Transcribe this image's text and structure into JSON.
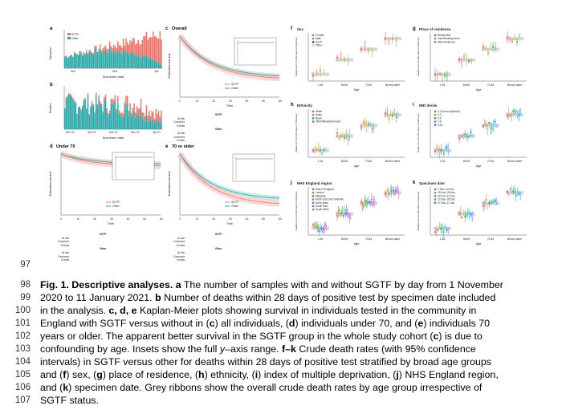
{
  "line_numbers": [
    "97",
    "98",
    "99",
    "100",
    "101",
    "102",
    "103",
    "104",
    "105",
    "106",
    "107"
  ],
  "caption_lines": [
    {
      "bold": "Fig. 1. Descriptive analyses. a",
      "text": " The number of samples with and without SGTF by day from 1 November"
    },
    {
      "bold": "",
      "text": "2020 to 11 January 2021. "
    },
    {
      "bold": "",
      "text": "in the analysis. "
    },
    {
      "bold": "",
      "text": "England with SGTF versus without in ("
    },
    {
      "bold": "",
      "text": "years or older. The apparent better survival in the SGTF group in the whole study cohort ("
    },
    {
      "bold": "",
      "text": "confounding by age. Insets show the full "
    },
    {
      "bold": "",
      "text": "intervals) in SGTF versus other for deaths within 28 days of positive test stratified by broad age groups"
    },
    {
      "bold": "",
      "text": "and ("
    },
    {
      "bold": "",
      "text": "and ("
    },
    {
      "bold": "",
      "text": "SGTF status."
    }
  ],
  "caption_rich": {
    "l99b": "b",
    "l99t": " Number of deaths within 28 days of positive test by specimen date included",
    "l100b": "c, d, e",
    "l100t": " Kaplan-Meier plots showing survival in individuals tested in the community in",
    "l101a": "c",
    "l101b": ") all individuals, (",
    "l101c": "d",
    "l101d": ") individuals under 70, and (",
    "l101e": "e",
    "l101f": ") individuals 70",
    "l102a": "c",
    "l102b": ") is due to",
    "l103a": "y",
    "l103b": "–axis range. ",
    "l103c": "f–k",
    "l103d": " Crude death rates (with 95% confidence",
    "l105a": "f",
    "l105b": ") sex, (",
    "l105c": "g",
    "l105d": ") place of residence, (",
    "l105e": "h",
    "l105f": ") ethnicity, (",
    "l105g": "i",
    "l105h": ") index of multiple deprivation, (",
    "l105i": "j",
    "l105j": ") NHS England region,",
    "l106a": "k",
    "l106b": ") specimen date. Grey ribbons show the overall crude death rates by age group irrespective of"
  },
  "panel_labels": {
    "a": "a",
    "b": "b",
    "c": "c",
    "d": "d",
    "e": "e",
    "f": "f",
    "g": "g",
    "h": "h",
    "i": "i",
    "j": "j",
    "k": "k"
  },
  "panel_a": {
    "ylabel": "Samples",
    "xlabel": "Specimen date",
    "legend": [
      "SGTF",
      "Other"
    ],
    "xticks": [
      "Nov",
      "Dec",
      "Jan"
    ],
    "colors": {
      "sgtf": "#f07167",
      "other": "#26a6a6"
    }
  },
  "panel_b": {
    "ylabel": "Deaths",
    "xlabel": "Specimen date",
    "xticks": [
      "Nov 01",
      "Nov 15",
      "Dec 01",
      "Dec 15",
      "Jan 01"
    ]
  },
  "km_panels": {
    "c": {
      "title": "Overall",
      "ylabel": "Estimated survival",
      "xlabel": "Time",
      "legend": [
        "SGTF",
        "Other"
      ],
      "table_header": "SGTF",
      "table_header2": "Other",
      "rows1": [
        "At risk",
        "Censored",
        "Events"
      ],
      "rows2": [
        "At risk",
        "Censored",
        "Events"
      ]
    },
    "d": {
      "title": "Under 70",
      "ylabel": "Estimated survival",
      "xlabel": "Time",
      "legend": [
        "SGTF",
        "Other"
      ],
      "table_header": "SGTF",
      "table_header2": "Other",
      "rows1": [
        "At risk",
        "Censored",
        "Events"
      ],
      "rows2": [
        "At risk",
        "Censored",
        "Events"
      ]
    },
    "e": {
      "title": "70 or older",
      "ylabel": "Estimated survival",
      "xlabel": "Time",
      "legend": [
        "SGTF",
        "Other"
      ],
      "table_header": "SGTF",
      "table_header2": "Other",
      "rows1": [
        "At risk",
        "Censored",
        "Events"
      ],
      "rows2": [
        "At risk",
        "Censored",
        "Events"
      ]
    }
  },
  "km_time_ticks": [
    "0",
    "10",
    "20",
    "30",
    "40",
    "50",
    "60"
  ],
  "rate_panels": {
    "f": {
      "title": "Sex",
      "legend": [
        "Female",
        "Male",
        "SGTF",
        "Other"
      ]
    },
    "g": {
      "title": "Place of residence",
      "legend": [
        "Residential",
        "Care/Nursing home",
        "Other/Unknown"
      ]
    },
    "h": {
      "title": "Ethnicity",
      "legend": [
        "White",
        "Asian",
        "Black",
        "Other/Mixed/Unknown"
      ]
    },
    "i": {
      "title": "IMD decile",
      "legend": [
        "1-2 (most deprived)",
        "3-4",
        "5-6",
        "7-8",
        "9-10"
      ]
    },
    "j": {
      "title": "NHS England region",
      "legend": [
        "East of England",
        "London",
        "Midlands",
        "North East and Yorkshire",
        "North West",
        "South East",
        "South West"
      ]
    },
    "k": {
      "title": "Specimen date",
      "legend": [
        "1 Nov–14 Nov",
        "15 Nov–28 Nov",
        "29 Nov–12 Dec",
        "13 Dec–26 Dec",
        "27 Dec–11 Jan"
      ]
    }
  },
  "rate_axis": {
    "ylabel": "Deaths per 10,000 days of followup",
    "xlabel": "Age",
    "age_groups": [
      "1-54",
      "55-69",
      "70-84",
      "85 and older"
    ]
  },
  "colors": {
    "sgtf": "#f07167",
    "other": "#26a6a6",
    "cat": [
      "#e8635a",
      "#b8a530",
      "#3cae52",
      "#35b5b8",
      "#4a86e8",
      "#b15fd9",
      "#e86fb8"
    ]
  }
}
